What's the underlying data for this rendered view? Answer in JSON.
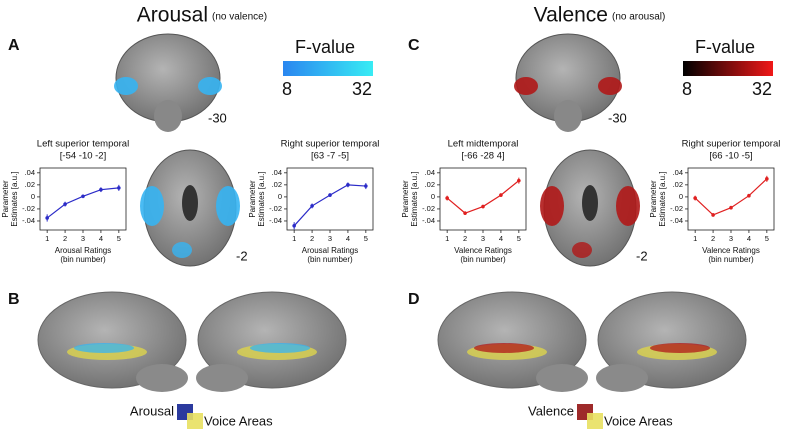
{
  "figure": {
    "panels": [
      {
        "letter": "A",
        "heading": "Arousal",
        "note": "(no valence)",
        "colorbar": {
          "label": "F-value",
          "min": 8,
          "max": 32,
          "colors": [
            "#2a86f0",
            "#38ecf4"
          ]
        },
        "slices": [
          -30,
          -2
        ],
        "letter_lower": "B",
        "legend": {
          "label": "Arousal",
          "overlay": "Voice Areas",
          "colors": [
            "#2b3a9e",
            "#e8e060"
          ]
        }
      },
      {
        "letter": "C",
        "heading": "Valence",
        "note": "(no arousal)",
        "colorbar": {
          "label": "F-value",
          "min": 8,
          "max": 32,
          "colors": [
            "#000000",
            "#f01818"
          ]
        },
        "slices": [
          -30,
          -2
        ],
        "letter_lower": "D",
        "legend": {
          "label": "Valence",
          "overlay": "Voice Areas",
          "colors": [
            "#9e2a2a",
            "#e8e060"
          ]
        }
      }
    ]
  },
  "chart_data": [
    {
      "type": "line",
      "title": "Left superior temporal",
      "subtitle": "[-54 -10 -2]",
      "ylabel": [
        "Parameter",
        "Estimates [a.u.]"
      ],
      "xlabel": [
        "Arousal Ratings",
        "(bin number)"
      ],
      "x": [
        1,
        2,
        3,
        4,
        5
      ],
      "values": [
        -0.035,
        -0.012,
        0.001,
        0.012,
        0.015
      ],
      "errors": [
        0.006,
        0.004,
        0.003,
        0.004,
        0.005
      ],
      "color": "#2b2bc8",
      "xlim": [
        0.6,
        5.4
      ],
      "xticks": [
        1,
        2,
        3,
        4,
        5
      ],
      "ylim": [
        -0.055,
        0.048
      ],
      "yticks": [
        {
          "value": 0.04,
          "label": ".04"
        },
        {
          "value": 0.02,
          "label": ".02"
        },
        0,
        {
          "value": -0.02,
          "label": "-.02"
        },
        {
          "value": -0.04,
          "label": "-.04"
        }
      ]
    },
    {
      "type": "line",
      "title": "Right superior temporal",
      "subtitle": "[63 -7 -5]",
      "ylabel": [
        "Parameter",
        "Estimates [a.u.]"
      ],
      "xlabel": [
        "Arousal Ratings",
        "(bin number)"
      ],
      "x": [
        1,
        2,
        3,
        4,
        5
      ],
      "values": [
        -0.048,
        -0.015,
        0.003,
        0.02,
        0.018
      ],
      "errors": [
        0.006,
        0.004,
        0.003,
        0.004,
        0.005
      ],
      "color": "#2b2bc8",
      "xlim": [
        0.6,
        5.4
      ],
      "xticks": [
        1,
        2,
        3,
        4,
        5
      ],
      "ylim": [
        -0.055,
        0.048
      ],
      "yticks": [
        {
          "value": 0.04,
          "label": ".04"
        },
        {
          "value": 0.02,
          "label": ".02"
        },
        0,
        {
          "value": -0.02,
          "label": "-.02"
        },
        {
          "value": -0.04,
          "label": "-.04"
        }
      ]
    },
    {
      "type": "line",
      "title": "Left midtemporal",
      "subtitle": "[-66 -28 4]",
      "ylabel": [
        "Parameter",
        "Estimates [a.u.]"
      ],
      "xlabel": [
        "Valence Ratings",
        "(bin number)"
      ],
      "x": [
        1,
        2,
        3,
        4,
        5
      ],
      "values": [
        -0.002,
        -0.027,
        -0.016,
        0.003,
        0.027
      ],
      "errors": [
        0.004,
        0.003,
        0.003,
        0.003,
        0.005
      ],
      "color": "#e02020",
      "xlim": [
        0.6,
        5.4
      ],
      "xticks": [
        1,
        2,
        3,
        4,
        5
      ],
      "ylim": [
        -0.055,
        0.048
      ],
      "yticks": [
        {
          "value": 0.04,
          "label": ".04"
        },
        {
          "value": 0.02,
          "label": ".02"
        },
        0,
        {
          "value": -0.02,
          "label": "-.02"
        },
        {
          "value": -0.04,
          "label": "-.04"
        }
      ]
    },
    {
      "type": "line",
      "title": "Right superior temporal",
      "subtitle": "[66 -10 -5]",
      "ylabel": [
        "Parameter",
        "Estimates [a.u.]"
      ],
      "xlabel": [
        "Valence Ratings",
        "(bin number)"
      ],
      "x": [
        1,
        2,
        3,
        4,
        5
      ],
      "values": [
        -0.002,
        -0.03,
        -0.018,
        0.002,
        0.03
      ],
      "errors": [
        0.004,
        0.003,
        0.003,
        0.003,
        0.005
      ],
      "color": "#e02020",
      "xlim": [
        0.6,
        5.4
      ],
      "xticks": [
        1,
        2,
        3,
        4,
        5
      ],
      "ylim": [
        -0.055,
        0.048
      ],
      "yticks": [
        {
          "value": 0.04,
          "label": ".04"
        },
        {
          "value": 0.02,
          "label": ".02"
        },
        0,
        {
          "value": -0.02,
          "label": "-.02"
        },
        {
          "value": -0.04,
          "label": "-.04"
        }
      ]
    }
  ]
}
